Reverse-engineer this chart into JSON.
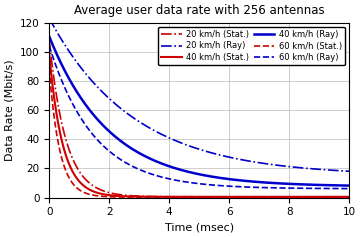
{
  "title": "Average user data rate with 256 antennas",
  "xlabel": "Time (msec)",
  "ylabel": "Data Rate (Mbit/s)",
  "xlim": [
    0,
    10
  ],
  "ylim": [
    0,
    120
  ],
  "yticks": [
    0,
    20,
    40,
    60,
    80,
    100,
    120
  ],
  "xticks": [
    0,
    2,
    4,
    6,
    8,
    10
  ],
  "red_color": "#cc0000",
  "blue_color": "#0000cc",
  "legend_entries": [
    {
      "label": "20 km/h (Stat.)",
      "color": "#cc0000",
      "ls": "dashdot"
    },
    {
      "label": "20 km/h (Ray)",
      "color": "#0000cc",
      "ls": "dashdot"
    },
    {
      "label": "40 km/h (Stat.)",
      "color": "#cc0000",
      "ls": "solid"
    },
    {
      "label": "40 km/h (Ray)",
      "color": "#0000cc",
      "ls": "solid"
    },
    {
      "label": "60 km/h (Stat.)",
      "color": "#cc0000",
      "ls": "dashed"
    },
    {
      "label": "60 km/h (Ray)",
      "color": "#0000cc",
      "ls": "dashed"
    }
  ],
  "curves": {
    "stat_20": {
      "color": "#cc0000",
      "ls": "dashdot",
      "A": 110,
      "tau": 0.6
    },
    "stat_40": {
      "color": "#cc0000",
      "ls": "solid",
      "A": 100,
      "tau": 0.5
    },
    "stat_60": {
      "color": "#cc0000",
      "ls": "dashed",
      "A": 95,
      "tau": 0.35
    },
    "ray_20": {
      "color": "#0000cc",
      "ls": "dashdot",
      "A": 110,
      "tau": 2.5
    },
    "ray_40": {
      "color": "#0000cc",
      "ls": "solid",
      "A": 105,
      "tau": 1.8
    },
    "ray_60": {
      "color": "#0000cc",
      "ls": "dashed",
      "A": 100,
      "tau": 1.3
    }
  }
}
